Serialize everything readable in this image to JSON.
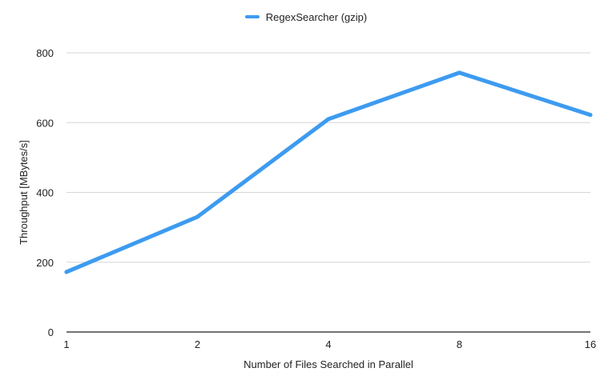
{
  "chart_data": {
    "type": "line",
    "title": "",
    "categories": [
      "1",
      "2",
      "4",
      "8",
      "16"
    ],
    "series": [
      {
        "name": "RegexSearcher (gzip)",
        "values": [
          172,
          330,
          610,
          743,
          622
        ],
        "color": "#3d9bf0"
      }
    ],
    "xlabel": "Number of Files Searched in Parallel",
    "ylabel": "Throughput [MBytes/s]",
    "ylim": [
      0,
      800
    ],
    "yticks": [
      0,
      200,
      400,
      600,
      800
    ],
    "grid": true,
    "legend_position": "top-center"
  }
}
